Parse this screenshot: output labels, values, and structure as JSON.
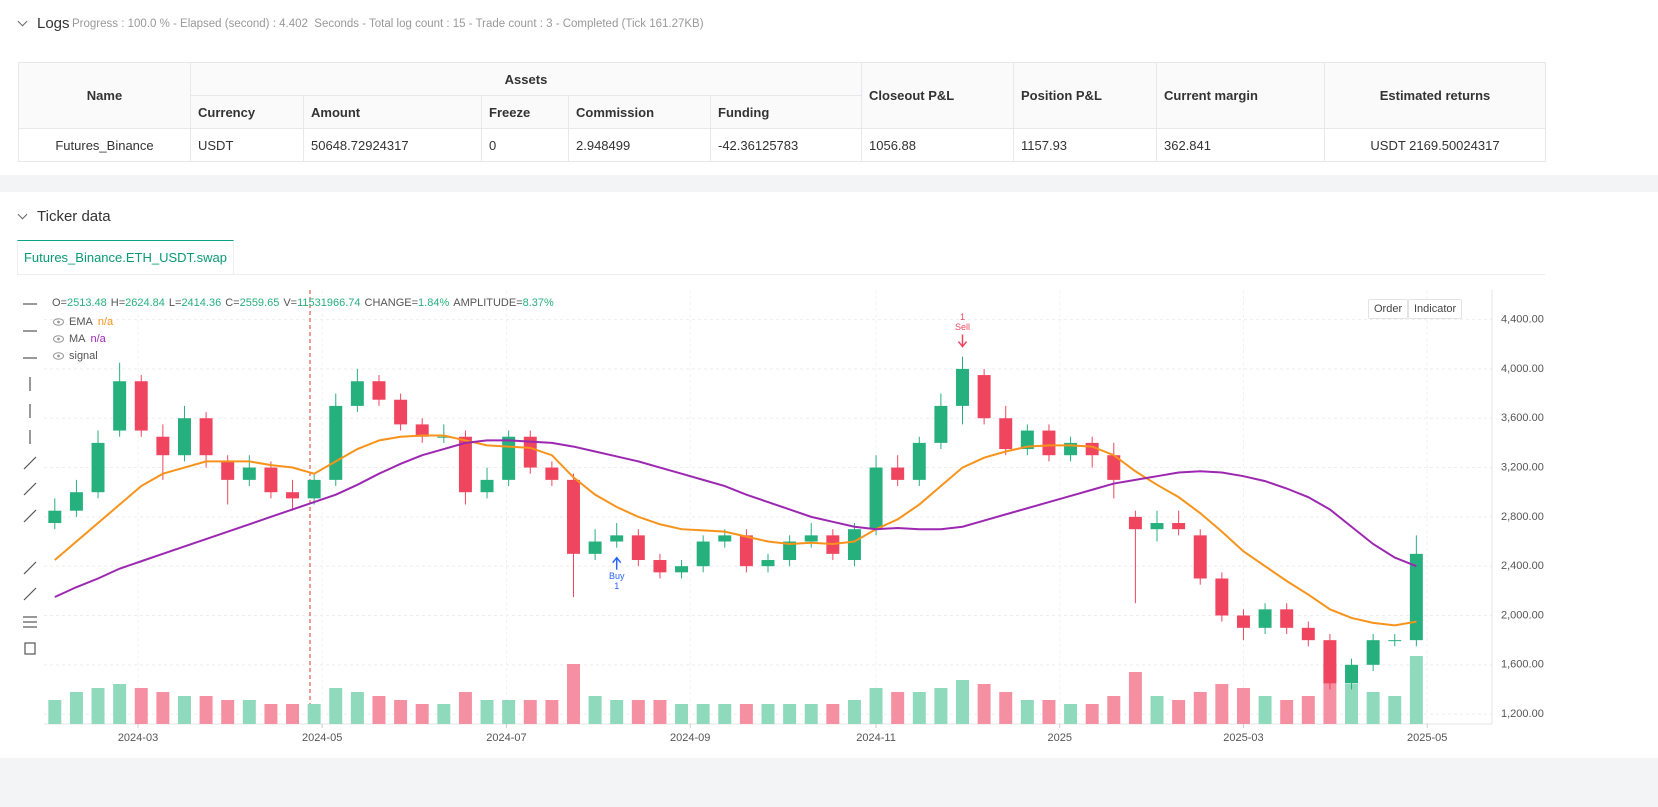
{
  "logs": {
    "title": "Logs",
    "status": "Progress : 100.0 % - Elapsed (second) : 4.402  Seconds - Total log count : 15 - Trade count : 3 - Completed (Tick 161.27KB)"
  },
  "table": {
    "group_header": "Assets",
    "headers": [
      "Name",
      "Currency",
      "Amount",
      "Freeze",
      "Commission",
      "Funding",
      "Closeout P&L",
      "Position P&L",
      "Current margin",
      "Estimated returns"
    ],
    "rows": [
      [
        "Futures_Binance",
        "USDT",
        "50648.72924317",
        "0",
        "2.948499",
        "-42.36125783",
        "1056.88",
        "1157.93",
        "362.841",
        "USDT 2169.50024317"
      ]
    ]
  },
  "ticker": {
    "title": "Ticker data",
    "tab": "Futures_Binance.ETH_USDT.swap",
    "buttons": [
      "Order",
      "Indicator"
    ]
  },
  "chart_data": {
    "type": "candlestick",
    "info": [
      {
        "key": "O=",
        "value": "2513.48"
      },
      {
        "key": "H=",
        "value": "2624.84"
      },
      {
        "key": "L=",
        "value": "2414.36"
      },
      {
        "key": "C=",
        "value": "2559.65"
      },
      {
        "key": "V=",
        "value": "11531966.74"
      },
      {
        "key": "CHANGE=",
        "value": "1.84%"
      },
      {
        "key": "AMPLITUDE=",
        "value": "8.37%"
      }
    ],
    "open": [
      2750,
      2850,
      3000,
      3500,
      3900,
      3450,
      3300,
      3600,
      3250,
      3100,
      3200,
      3000,
      2950,
      3100,
      3700,
      3900,
      3750,
      3550,
      3450,
      3450,
      3000,
      3100,
      3450,
      3200,
      3100,
      2500,
      2600,
      2650,
      2450,
      2350,
      2400,
      2600,
      2650,
      2400,
      2450,
      2600,
      2650,
      2450,
      2700,
      3200,
      3100,
      3400,
      3700,
      3950,
      3600,
      3350,
      3500,
      3300,
      3400,
      3300,
      2800,
      2700,
      2750,
      2650,
      2300,
      2000,
      1900,
      2050,
      1900,
      1800,
      1450,
      1600,
      1800,
      1800
    ],
    "high": [
      2950,
      3100,
      3500,
      4050,
      3950,
      3550,
      3700,
      3650,
      3300,
      3300,
      3250,
      3100,
      3150,
      3800,
      4000,
      3950,
      3800,
      3600,
      3550,
      3500,
      3200,
      3500,
      3500,
      3250,
      3150,
      2700,
      2750,
      2700,
      2500,
      2450,
      2650,
      2700,
      2700,
      2500,
      2650,
      2750,
      2700,
      2750,
      3300,
      3300,
      3450,
      3800,
      4100,
      4000,
      3700,
      3550,
      3550,
      3450,
      3450,
      3400,
      2850,
      2850,
      2850,
      2700,
      2350,
      2050,
      2100,
      2100,
      1950,
      1850,
      1650,
      1850,
      1850,
      2650
    ],
    "low": [
      2700,
      2800,
      2950,
      3450,
      3450,
      3100,
      3250,
      3200,
      2900,
      3050,
      2950,
      2850,
      2900,
      3050,
      3650,
      3700,
      3500,
      3400,
      3400,
      2900,
      2950,
      3050,
      3150,
      3050,
      2150,
      2450,
      2550,
      2400,
      2300,
      2300,
      2350,
      2550,
      2350,
      2350,
      2400,
      2550,
      2450,
      2400,
      2650,
      3050,
      3050,
      3350,
      3550,
      3550,
      3300,
      3300,
      3250,
      3250,
      3200,
      2950,
      2100,
      2600,
      2650,
      2250,
      1950,
      1800,
      1850,
      1850,
      1750,
      1400,
      1400,
      1550,
      1750,
      1750
    ],
    "close": [
      2850,
      3000,
      3400,
      3900,
      3500,
      3300,
      3600,
      3300,
      3100,
      3200,
      3000,
      2950,
      3100,
      3700,
      3900,
      3750,
      3550,
      3450,
      3450,
      3000,
      3100,
      3450,
      3200,
      3100,
      2500,
      2600,
      2650,
      2450,
      2350,
      2400,
      2600,
      2650,
      2400,
      2450,
      2600,
      2650,
      2500,
      2700,
      3200,
      3100,
      3400,
      3700,
      4000,
      3600,
      3350,
      3500,
      3300,
      3400,
      3300,
      3100,
      2700,
      2750,
      2700,
      2300,
      2000,
      1900,
      2050,
      1900,
      1800,
      1450,
      1600,
      1800,
      1800,
      2500
    ],
    "volume": [
      6000000,
      8000000,
      9000000,
      10000000,
      9000000,
      8000000,
      7000000,
      7000000,
      6000000,
      6000000,
      5000000,
      5000000,
      5000000,
      9000000,
      8000000,
      7000000,
      6000000,
      5000000,
      5000000,
      8000000,
      6000000,
      6000000,
      6000000,
      6000000,
      15000000,
      7000000,
      6000000,
      6000000,
      6000000,
      5000000,
      5000000,
      5000000,
      5000000,
      5000000,
      5000000,
      5000000,
      5000000,
      6000000,
      9000000,
      8000000,
      8000000,
      9000000,
      11000000,
      10000000,
      8000000,
      6000000,
      6000000,
      5000000,
      5000000,
      7000000,
      13000000,
      7000000,
      6000000,
      8000000,
      10000000,
      9000000,
      7000000,
      6000000,
      7000000,
      15000000,
      10000000,
      8000000,
      7000000,
      17000000
    ],
    "vlim": [
      0,
      20000000
    ],
    "up_color": "#26b07e",
    "down_color": "#f0455f",
    "up_volume_color": "#8fd9bd",
    "down_volume_color": "#f58fa2",
    "series": [
      {
        "name": "EMA",
        "legend_value": "n/a",
        "color": "#f7931a",
        "values": [
          2450,
          2600,
          2750,
          2900,
          3050,
          3150,
          3200,
          3250,
          3250,
          3250,
          3220,
          3200,
          3150,
          3250,
          3350,
          3420,
          3450,
          3460,
          3460,
          3420,
          3380,
          3370,
          3360,
          3300,
          3120,
          2980,
          2880,
          2800,
          2740,
          2700,
          2690,
          2680,
          2640,
          2600,
          2580,
          2590,
          2580,
          2600,
          2700,
          2780,
          2900,
          3050,
          3200,
          3280,
          3330,
          3370,
          3380,
          3380,
          3370,
          3300,
          3170,
          3060,
          2960,
          2830,
          2680,
          2520,
          2400,
          2280,
          2170,
          2050,
          1980,
          1940,
          1920,
          1950
        ]
      },
      {
        "name": "MA",
        "legend_value": "n/a",
        "color": "#9c27b0",
        "values": [
          2150,
          2230,
          2300,
          2380,
          2440,
          2500,
          2560,
          2620,
          2680,
          2740,
          2800,
          2860,
          2920,
          2980,
          3060,
          3150,
          3230,
          3300,
          3350,
          3400,
          3420,
          3420,
          3410,
          3400,
          3370,
          3330,
          3290,
          3250,
          3200,
          3150,
          3100,
          3050,
          2980,
          2920,
          2860,
          2800,
          2760,
          2720,
          2700,
          2710,
          2700,
          2700,
          2720,
          2770,
          2820,
          2870,
          2920,
          2970,
          3020,
          3070,
          3100,
          3130,
          3160,
          3170,
          3160,
          3130,
          3090,
          3030,
          2960,
          2860,
          2720,
          2580,
          2470,
          2400
        ]
      }
    ],
    "signal_legend": "signal",
    "signals": [
      {
        "index": 26,
        "label": "Buy",
        "count": 1,
        "color": "#2962ff"
      },
      {
        "index": 42,
        "label": "Sell",
        "count": 1,
        "color": "#f0455f"
      }
    ],
    "xlim": [
      -0.5,
      66.5
    ],
    "xticks": [
      {
        "value": 3.85,
        "label": "2024-03"
      },
      {
        "value": 12.37,
        "label": "2024-05"
      },
      {
        "value": 20.9,
        "label": "2024-07"
      },
      {
        "value": 29.4,
        "label": "2024-09"
      },
      {
        "value": 38.0,
        "label": "2024-11"
      },
      {
        "value": 46.5,
        "label": "2025"
      },
      {
        "value": 55.0,
        "label": "2025-03"
      },
      {
        "value": 63.5,
        "label": "2025-05"
      }
    ],
    "ylim": [
      1120,
      4640
    ],
    "yticks": [
      {
        "value": 1200,
        "label": "1,200.00"
      },
      {
        "value": 1600,
        "label": "1,600.00"
      },
      {
        "value": 2000,
        "label": "2,000.00"
      },
      {
        "value": 2400,
        "label": "2,400.00"
      },
      {
        "value": 2800,
        "label": "2,800.00"
      },
      {
        "value": 3200,
        "label": "3,200.00"
      },
      {
        "value": 3600,
        "label": "3,600.00"
      },
      {
        "value": 4000,
        "label": "4,000.00"
      },
      {
        "value": 4400,
        "label": "4,400.00"
      }
    ],
    "grid": true
  }
}
